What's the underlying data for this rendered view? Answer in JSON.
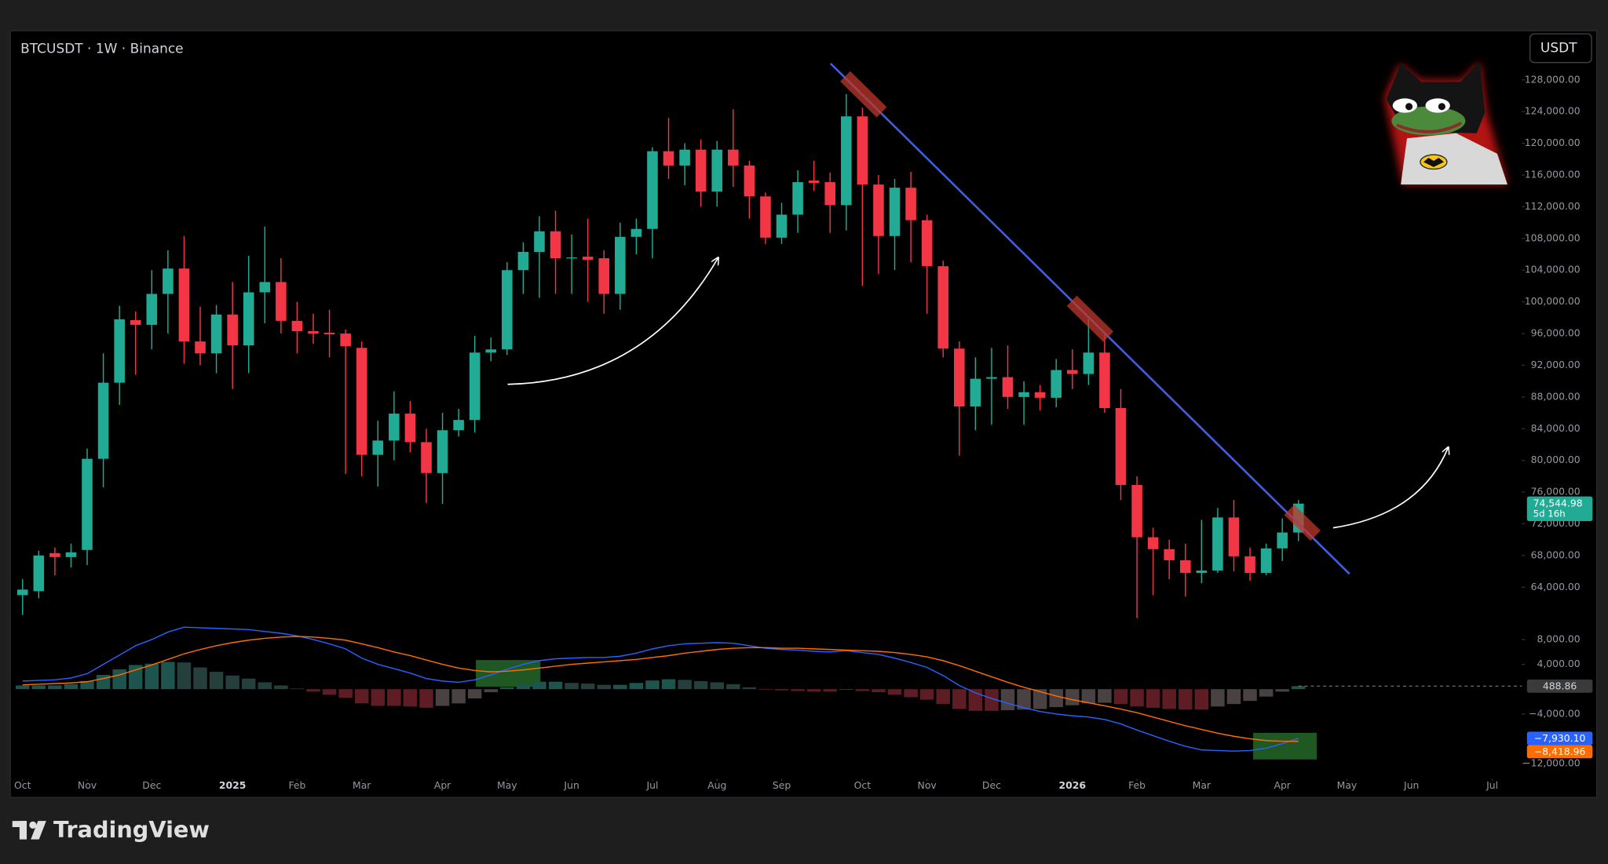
{
  "chart_data": [
    {
      "type": "candlestick",
      "title": "BTCUSDT · 1W · Binance",
      "currency": "USDT",
      "up_color": "#22ab94",
      "down_color": "#f23645",
      "grid": false,
      "xlim": [
        -0.76,
        92.83
      ],
      "xticks": [
        {
          "value": 0,
          "label": "Oct"
        },
        {
          "value": 4,
          "label": "Nov"
        },
        {
          "value": 8,
          "label": "Dec"
        },
        {
          "value": 13,
          "label": "2025"
        },
        {
          "value": 17,
          "label": "Feb"
        },
        {
          "value": 21,
          "label": "Mar"
        },
        {
          "value": 26,
          "label": "Apr"
        },
        {
          "value": 30,
          "label": "May"
        },
        {
          "value": 34,
          "label": "Jun"
        },
        {
          "value": 39,
          "label": "Jul"
        },
        {
          "value": 43,
          "label": "Aug"
        },
        {
          "value": 47,
          "label": "Sep"
        },
        {
          "value": 52,
          "label": "Oct"
        },
        {
          "value": 56,
          "label": "Nov"
        },
        {
          "value": 60,
          "label": "Dec"
        },
        {
          "value": 65,
          "label": "2026"
        },
        {
          "value": 69,
          "label": "Feb"
        },
        {
          "value": 73,
          "label": "Mar"
        },
        {
          "value": 78,
          "label": "Apr"
        },
        {
          "value": 82,
          "label": "May"
        },
        {
          "value": 86,
          "label": "Jun"
        },
        {
          "value": 91,
          "label": "Jul"
        }
      ],
      "ylim": [
        60500,
        134200
      ],
      "yticks": [
        {
          "value": 64000,
          "label": "64,000.00"
        },
        {
          "value": 68000,
          "label": "68,000.00"
        },
        {
          "value": 72000,
          "label": "72,000.00"
        },
        {
          "value": 76000,
          "label": "76,000.00"
        },
        {
          "value": 80000,
          "label": "80,000.00"
        },
        {
          "value": 84000,
          "label": "84,000.00"
        },
        {
          "value": 88000,
          "label": "88,000.00"
        },
        {
          "value": 92000,
          "label": "92,000.00"
        },
        {
          "value": 96000,
          "label": "96,000.00"
        },
        {
          "value": 100000,
          "label": "100,000.00"
        },
        {
          "value": 104000,
          "label": "104,000.00"
        },
        {
          "value": 108000,
          "label": "108,000.00"
        },
        {
          "value": 112000,
          "label": "112,000.00"
        },
        {
          "value": 116000,
          "label": "116,000.00"
        },
        {
          "value": 120000,
          "label": "120,000.00"
        },
        {
          "value": 124000,
          "label": "124,000.00"
        },
        {
          "value": 128000,
          "label": "128,000.00"
        }
      ],
      "open": [
        63000,
        63500,
        68300,
        67800,
        68700,
        80200,
        89800,
        97700,
        97100,
        101000,
        104200,
        95000,
        93500,
        98400,
        94500,
        101200,
        102500,
        97600,
        96300,
        96100,
        96000,
        94200,
        80700,
        82500,
        85900,
        82300,
        78400,
        83800,
        85100,
        93600,
        94000,
        104000,
        106300,
        108900,
        105500,
        105700,
        105500,
        101000,
        108200,
        109200,
        119000,
        117200,
        119200,
        113900,
        119200,
        117200,
        113300,
        108100,
        111000,
        115300,
        115100,
        112200,
        123400,
        114800,
        108300,
        114400,
        110300,
        104500,
        94100,
        86800,
        90300,
        90500,
        88000,
        88600,
        87900,
        91400,
        90900,
        93600,
        86600,
        76900,
        70300,
        68800,
        67400,
        65800,
        66100,
        72800,
        67900,
        65800,
        68900,
        70900
      ],
      "high": [
        65000,
        68600,
        69000,
        69500,
        81500,
        93500,
        99500,
        98800,
        104000,
        106500,
        108300,
        99400,
        99600,
        102500,
        105800,
        109500,
        105500,
        100000,
        98500,
        99000,
        96500,
        95000,
        85000,
        88700,
        87500,
        84000,
        86000,
        86500,
        95700,
        95500,
        105000,
        107500,
        110800,
        111500,
        108500,
        110500,
        106500,
        110000,
        110500,
        119500,
        123200,
        120000,
        120500,
        120300,
        124300,
        117800,
        113800,
        112500,
        116600,
        117800,
        116300,
        126200,
        124500,
        116000,
        115500,
        116400,
        111000,
        105200,
        95000,
        93000,
        94200,
        94500,
        90000,
        89500,
        92800,
        94000,
        97800,
        96000,
        89000,
        78000,
        71500,
        70000,
        69500,
        72500,
        74000,
        75000,
        69000,
        69500,
        72700,
        75000
      ],
      "low": [
        60500,
        62600,
        65500,
        66500,
        66800,
        76600,
        87000,
        90800,
        94000,
        96000,
        92200,
        92000,
        91000,
        89000,
        91000,
        97300,
        96000,
        93500,
        94700,
        93000,
        78300,
        78000,
        76700,
        80000,
        81000,
        74600,
        74500,
        83000,
        83500,
        92500,
        93300,
        101000,
        100500,
        101000,
        101000,
        100000,
        98500,
        99000,
        106000,
        105500,
        115500,
        114700,
        112000,
        112000,
        114500,
        110500,
        107300,
        107300,
        108700,
        114000,
        108700,
        109000,
        102000,
        103500,
        104000,
        105000,
        98500,
        93000,
        80600,
        83800,
        84500,
        86500,
        84500,
        86300,
        86700,
        89000,
        89500,
        86000,
        75000,
        60100,
        63000,
        65000,
        62800,
        64500,
        65800,
        66000,
        64800,
        65500,
        67300,
        69800
      ],
      "close": [
        63700,
        68000,
        67800,
        68400,
        80200,
        89800,
        97800,
        97100,
        101000,
        104200,
        95000,
        93500,
        98400,
        94500,
        101200,
        102500,
        97600,
        96300,
        96000,
        95900,
        94400,
        80700,
        82500,
        85900,
        82300,
        78400,
        83800,
        85100,
        93600,
        94000,
        104000,
        106300,
        108900,
        105500,
        105600,
        105300,
        101000,
        108200,
        109200,
        119000,
        117200,
        119200,
        113900,
        119200,
        117200,
        113300,
        108100,
        111000,
        115100,
        115000,
        112200,
        123400,
        114800,
        108300,
        114400,
        110300,
        104500,
        94100,
        86800,
        90300,
        90500,
        88000,
        88600,
        87900,
        91400,
        90900,
        93600,
        86600,
        76900,
        70300,
        68800,
        67400,
        65800,
        66100,
        72800,
        67900,
        65800,
        68900,
        70900,
        74544.98
      ],
      "last_label": "74,544.98",
      "countdown": "5d 16h",
      "trendline": {
        "x": [
          50.03,
          82.16
        ],
        "y": [
          130070,
          65680
        ],
        "color": "#3f5fe0"
      }
    },
    {
      "type": "line",
      "ylim": [
        -14480,
        11140
      ],
      "yticks": [
        {
          "value": 8000,
          "label": "8,000.00"
        },
        {
          "value": 4000,
          "label": "4,000.00"
        },
        {
          "value": -4000,
          "label": "−4,000.00"
        },
        {
          "value": -12000,
          "label": "−12,000.00"
        }
      ],
      "histogram": {
        "colors": {
          "up_growing": "#1d544d",
          "up_falling": "#243f3c",
          "down_falling": "#5e1d24",
          "down_growing": "#4a4142"
        },
        "values": [
          600,
          600,
          600,
          800,
          1300,
          2300,
          3200,
          3900,
          4100,
          4400,
          4300,
          3500,
          2800,
          2200,
          1700,
          1100,
          600,
          100,
          -400,
          -900,
          -1400,
          -2300,
          -2700,
          -2700,
          -2800,
          -3000,
          -2700,
          -2300,
          -1500,
          -500,
          300,
          900,
          1200,
          1200,
          1000,
          900,
          700,
          700,
          1000,
          1400,
          1600,
          1500,
          1300,
          1100,
          800,
          300,
          -100,
          -200,
          -300,
          -400,
          -400,
          -100,
          -300,
          -500,
          -900,
          -1300,
          -1700,
          -2400,
          -3200,
          -3500,
          -3500,
          -3400,
          -3300,
          -3200,
          -2900,
          -2600,
          -2300,
          -2200,
          -2400,
          -2800,
          -3000,
          -3200,
          -3300,
          -3300,
          -2800,
          -2400,
          -1900,
          -1200,
          -400,
          488.86
        ],
        "last_label": "488.86"
      },
      "series": [
        {
          "color": "#2962ff",
          "last_label": "−7,930.10",
          "values": [
            1300,
            1400,
            1500,
            1800,
            2500,
            4000,
            5500,
            7000,
            8000,
            9200,
            10000,
            9900,
            9800,
            9700,
            9600,
            9300,
            9000,
            8600,
            8000,
            7300,
            6500,
            5000,
            4000,
            3300,
            2600,
            1700,
            1300,
            1100,
            1500,
            2300,
            3200,
            4000,
            4600,
            4900,
            5000,
            5100,
            5100,
            5300,
            5800,
            6500,
            7000,
            7300,
            7400,
            7500,
            7400,
            7000,
            6600,
            6400,
            6300,
            6100,
            6000,
            6200,
            5900,
            5600,
            5000,
            4300,
            3500,
            2200,
            600,
            -600,
            -1500,
            -2300,
            -3000,
            -3600,
            -4000,
            -4300,
            -4500,
            -4900,
            -5600,
            -6600,
            -7500,
            -8400,
            -9200,
            -9800,
            -9900,
            -10000,
            -9900,
            -9500,
            -8800,
            -7930.1
          ]
        },
        {
          "color": "#ff6d00",
          "last_label": "−8,418.96",
          "values": [
            700,
            800,
            900,
            1000,
            1200,
            1700,
            2300,
            3100,
            3900,
            4800,
            5700,
            6400,
            7000,
            7500,
            7900,
            8200,
            8400,
            8500,
            8400,
            8200,
            7900,
            7300,
            6700,
            6000,
            5400,
            4700,
            4000,
            3400,
            3000,
            2800,
            2900,
            3100,
            3400,
            3700,
            4000,
            4200,
            4400,
            4600,
            4800,
            5100,
            5400,
            5800,
            6100,
            6400,
            6600,
            6700,
            6700,
            6600,
            6600,
            6500,
            6400,
            6300,
            6200,
            6100,
            5900,
            5600,
            5200,
            4600,
            3800,
            2900,
            2000,
            1100,
            300,
            -400,
            -1100,
            -1700,
            -2200,
            -2700,
            -3200,
            -3800,
            -4500,
            -5200,
            -5900,
            -6500,
            -7100,
            -7600,
            -8000,
            -8300,
            -8400,
            -8418.96
          ]
        }
      ]
    }
  ],
  "footer": {
    "brand": "TradingView"
  }
}
